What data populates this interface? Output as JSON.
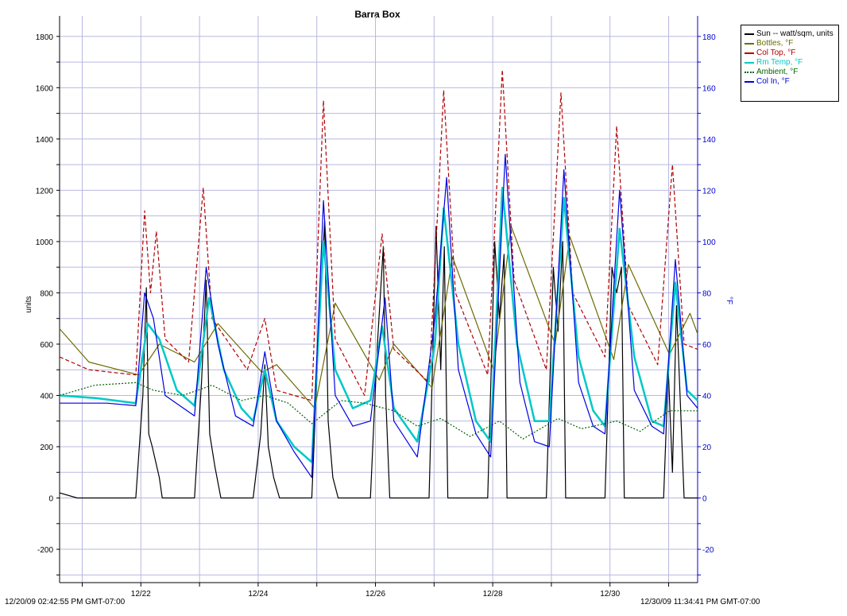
{
  "chart_data": {
    "type": "line",
    "title": "Barra Box",
    "ylabel": "units",
    "y2label": "°F",
    "ylim": [
      -330,
      1880
    ],
    "y2lim": [
      -33,
      188
    ],
    "y_ticks": [
      -200,
      0,
      200,
      400,
      600,
      800,
      1000,
      1200,
      1400,
      1600,
      1800
    ],
    "y2_ticks": [
      -20,
      0,
      20,
      40,
      60,
      80,
      100,
      120,
      140,
      160,
      180
    ],
    "x_start": "12/20/09 02:42:55 PM GMT-07:00",
    "x_end": "12/30/09 11:34:41 PM GMT-07:00",
    "x_tick_labels": [
      "12/22",
      "12/24",
      "12/26",
      "12/28",
      "12/30"
    ],
    "grid": true,
    "legend_position": "top-right, outside plot",
    "series": [
      {
        "name": "Sun -- watt/sqm, units",
        "axis": "left",
        "color": "#000000",
        "style": "solid",
        "points": [
          [
            0,
            20
          ],
          [
            0.3,
            0
          ],
          [
            1.3,
            0
          ],
          [
            1.42,
            400
          ],
          [
            1.48,
            820
          ],
          [
            1.52,
            250
          ],
          [
            1.58,
            200
          ],
          [
            1.63,
            150
          ],
          [
            1.7,
            80
          ],
          [
            1.75,
            0
          ],
          [
            2.3,
            0
          ],
          [
            2.42,
            450
          ],
          [
            2.5,
            850
          ],
          [
            2.56,
            250
          ],
          [
            2.65,
            120
          ],
          [
            2.75,
            0
          ],
          [
            3.3,
            0
          ],
          [
            3.43,
            250
          ],
          [
            3.5,
            520
          ],
          [
            3.56,
            200
          ],
          [
            3.65,
            80
          ],
          [
            3.75,
            0
          ],
          [
            4.3,
            0
          ],
          [
            4.42,
            650
          ],
          [
            4.52,
            1080
          ],
          [
            4.58,
            300
          ],
          [
            4.66,
            80
          ],
          [
            4.75,
            0
          ],
          [
            5.3,
            0
          ],
          [
            5.42,
            600
          ],
          [
            5.52,
            980
          ],
          [
            5.56,
            400
          ],
          [
            5.63,
            0
          ],
          [
            6.3,
            0
          ],
          [
            6.42,
            1060
          ],
          [
            6.5,
            500
          ],
          [
            6.56,
            980
          ],
          [
            6.62,
            0
          ],
          [
            7.3,
            0
          ],
          [
            7.42,
            1000
          ],
          [
            7.5,
            700
          ],
          [
            7.58,
            950
          ],
          [
            7.63,
            0
          ],
          [
            8.3,
            0
          ],
          [
            8.42,
            900
          ],
          [
            8.5,
            650
          ],
          [
            8.58,
            1000
          ],
          [
            8.63,
            0
          ],
          [
            9.3,
            0
          ],
          [
            9.42,
            900
          ],
          [
            9.5,
            800
          ],
          [
            9.58,
            900
          ],
          [
            9.63,
            0
          ],
          [
            10.3,
            0
          ],
          [
            10.38,
            500
          ],
          [
            10.45,
            100
          ],
          [
            10.52,
            750
          ],
          [
            10.58,
            400
          ],
          [
            10.65,
            0
          ],
          [
            10.88,
            0
          ]
        ]
      },
      {
        "name": "Bottles, °F",
        "axis": "right",
        "color": "#6b6b00",
        "style": "solid",
        "points": [
          [
            0,
            66
          ],
          [
            0.5,
            53
          ],
          [
            1.35,
            48
          ],
          [
            1.7,
            60
          ],
          [
            2.3,
            53
          ],
          [
            2.7,
            68
          ],
          [
            3.45,
            49
          ],
          [
            3.7,
            52
          ],
          [
            4.35,
            35
          ],
          [
            4.7,
            76
          ],
          [
            5.45,
            46
          ],
          [
            5.7,
            60
          ],
          [
            6.35,
            43
          ],
          [
            6.7,
            94
          ],
          [
            7.4,
            50
          ],
          [
            7.7,
            106
          ],
          [
            8.45,
            60
          ],
          [
            8.7,
            102
          ],
          [
            9.45,
            54
          ],
          [
            9.7,
            91
          ],
          [
            10.4,
            56
          ],
          [
            10.75,
            72
          ],
          [
            10.88,
            64
          ]
        ]
      },
      {
        "name": "Col Top, °F",
        "axis": "right",
        "color": "#b00000",
        "style": "dashed",
        "points": [
          [
            0,
            55
          ],
          [
            0.5,
            50
          ],
          [
            1.3,
            48
          ],
          [
            1.45,
            112
          ],
          [
            1.55,
            80
          ],
          [
            1.65,
            104
          ],
          [
            1.8,
            62
          ],
          [
            2.2,
            53
          ],
          [
            2.45,
            121
          ],
          [
            2.6,
            70
          ],
          [
            3.2,
            50
          ],
          [
            3.5,
            70
          ],
          [
            3.7,
            42
          ],
          [
            4.3,
            38
          ],
          [
            4.5,
            155
          ],
          [
            4.7,
            62
          ],
          [
            5.2,
            40
          ],
          [
            5.5,
            103
          ],
          [
            5.7,
            58
          ],
          [
            6.3,
            45
          ],
          [
            6.55,
            159
          ],
          [
            6.75,
            80
          ],
          [
            7.3,
            48
          ],
          [
            7.55,
            167
          ],
          [
            7.75,
            85
          ],
          [
            8.3,
            50
          ],
          [
            8.55,
            158
          ],
          [
            8.75,
            80
          ],
          [
            9.3,
            55
          ],
          [
            9.5,
            145
          ],
          [
            9.7,
            75
          ],
          [
            10.2,
            52
          ],
          [
            10.45,
            130
          ],
          [
            10.65,
            60
          ],
          [
            10.88,
            58
          ]
        ]
      },
      {
        "name": "Rm Temp, °F",
        "axis": "right",
        "color": "#00c8c8",
        "style": "solid",
        "points": [
          [
            0,
            40
          ],
          [
            0.6,
            39
          ],
          [
            1.3,
            37
          ],
          [
            1.5,
            68
          ],
          [
            1.7,
            62
          ],
          [
            2.0,
            42
          ],
          [
            2.3,
            36
          ],
          [
            2.55,
            78
          ],
          [
            2.8,
            50
          ],
          [
            3.1,
            35
          ],
          [
            3.3,
            30
          ],
          [
            3.5,
            50
          ],
          [
            3.7,
            30
          ],
          [
            4.0,
            20
          ],
          [
            4.3,
            14
          ],
          [
            4.5,
            100
          ],
          [
            4.7,
            50
          ],
          [
            5.0,
            35
          ],
          [
            5.3,
            38
          ],
          [
            5.5,
            67
          ],
          [
            5.7,
            35
          ],
          [
            6.1,
            22
          ],
          [
            6.4,
            60
          ],
          [
            6.55,
            113
          ],
          [
            6.8,
            60
          ],
          [
            7.1,
            30
          ],
          [
            7.35,
            22
          ],
          [
            7.55,
            121
          ],
          [
            7.8,
            60
          ],
          [
            8.1,
            30
          ],
          [
            8.35,
            30
          ],
          [
            8.6,
            117
          ],
          [
            8.85,
            55
          ],
          [
            9.1,
            34
          ],
          [
            9.3,
            28
          ],
          [
            9.55,
            105
          ],
          [
            9.8,
            55
          ],
          [
            10.1,
            30
          ],
          [
            10.3,
            28
          ],
          [
            10.5,
            84
          ],
          [
            10.7,
            42
          ],
          [
            10.88,
            38
          ]
        ]
      },
      {
        "name": "Ambient, °F",
        "axis": "right",
        "color": "#006400",
        "style": "dotted",
        "points": [
          [
            0,
            40
          ],
          [
            0.6,
            44
          ],
          [
            1.3,
            45
          ],
          [
            1.6,
            42
          ],
          [
            2.1,
            40
          ],
          [
            2.6,
            44
          ],
          [
            3.1,
            38
          ],
          [
            3.5,
            40
          ],
          [
            3.9,
            37
          ],
          [
            4.3,
            29
          ],
          [
            4.8,
            38
          ],
          [
            5.2,
            37
          ],
          [
            5.7,
            34
          ],
          [
            6.1,
            28
          ],
          [
            6.5,
            31
          ],
          [
            7.0,
            24
          ],
          [
            7.5,
            30
          ],
          [
            7.9,
            23
          ],
          [
            8.5,
            31
          ],
          [
            8.9,
            27
          ],
          [
            9.5,
            30
          ],
          [
            9.9,
            26
          ],
          [
            10.4,
            34
          ],
          [
            10.88,
            34
          ]
        ]
      },
      {
        "name": "Col In, °F",
        "axis": "right",
        "color": "#0000e0",
        "style": "solid",
        "points": [
          [
            0,
            37
          ],
          [
            0.8,
            37
          ],
          [
            1.3,
            36
          ],
          [
            1.45,
            80
          ],
          [
            1.6,
            70
          ],
          [
            1.8,
            40
          ],
          [
            2.3,
            32
          ],
          [
            2.5,
            90
          ],
          [
            2.7,
            60
          ],
          [
            3.0,
            32
          ],
          [
            3.3,
            28
          ],
          [
            3.5,
            57
          ],
          [
            3.7,
            30
          ],
          [
            4.0,
            18
          ],
          [
            4.3,
            8
          ],
          [
            4.5,
            116
          ],
          [
            4.7,
            40
          ],
          [
            5.0,
            28
          ],
          [
            5.3,
            30
          ],
          [
            5.55,
            78
          ],
          [
            5.7,
            30
          ],
          [
            6.1,
            16
          ],
          [
            6.4,
            70
          ],
          [
            6.6,
            125
          ],
          [
            6.8,
            50
          ],
          [
            7.1,
            25
          ],
          [
            7.35,
            16
          ],
          [
            7.6,
            134
          ],
          [
            7.85,
            45
          ],
          [
            8.1,
            22
          ],
          [
            8.35,
            20
          ],
          [
            8.6,
            128
          ],
          [
            8.85,
            45
          ],
          [
            9.1,
            28
          ],
          [
            9.3,
            25
          ],
          [
            9.55,
            120
          ],
          [
            9.8,
            42
          ],
          [
            10.1,
            28
          ],
          [
            10.3,
            25
          ],
          [
            10.5,
            93
          ],
          [
            10.7,
            40
          ],
          [
            10.88,
            35
          ]
        ]
      }
    ]
  }
}
